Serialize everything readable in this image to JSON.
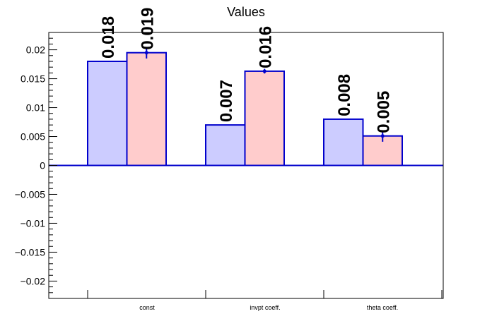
{
  "chart_data": {
    "type": "bar",
    "title": "Values",
    "xlabel": "",
    "ylabel": "",
    "categories": [
      "const",
      "invpt coeff.",
      "theta coeff."
    ],
    "series": [
      {
        "values": [
          0.018,
          0.007,
          0.008
        ],
        "labels": [
          "0.018",
          "0.007",
          "0.008"
        ],
        "fill": "#ccccff",
        "stroke": "#0000cc"
      },
      {
        "values": [
          0.0195,
          0.0163,
          0.0051
        ],
        "errors": [
          0.001,
          0.0004,
          0.001
        ],
        "labels": [
          "0.019",
          "0.016",
          "0.005"
        ],
        "fill": "#ffcccc",
        "stroke": "#0000cc"
      }
    ],
    "ylim": [
      -0.023,
      0.023
    ],
    "yticks": [
      -0.02,
      -0.015,
      -0.01,
      -0.005,
      0,
      0.005,
      0.01,
      0.015,
      0.02
    ],
    "ytick_labels": [
      "−0.02",
      "−0.015",
      "−0.01",
      "−0.005",
      "0",
      "0.005",
      "0.01",
      "0.015",
      "0.02"
    ],
    "grid": false,
    "legend": "none"
  }
}
